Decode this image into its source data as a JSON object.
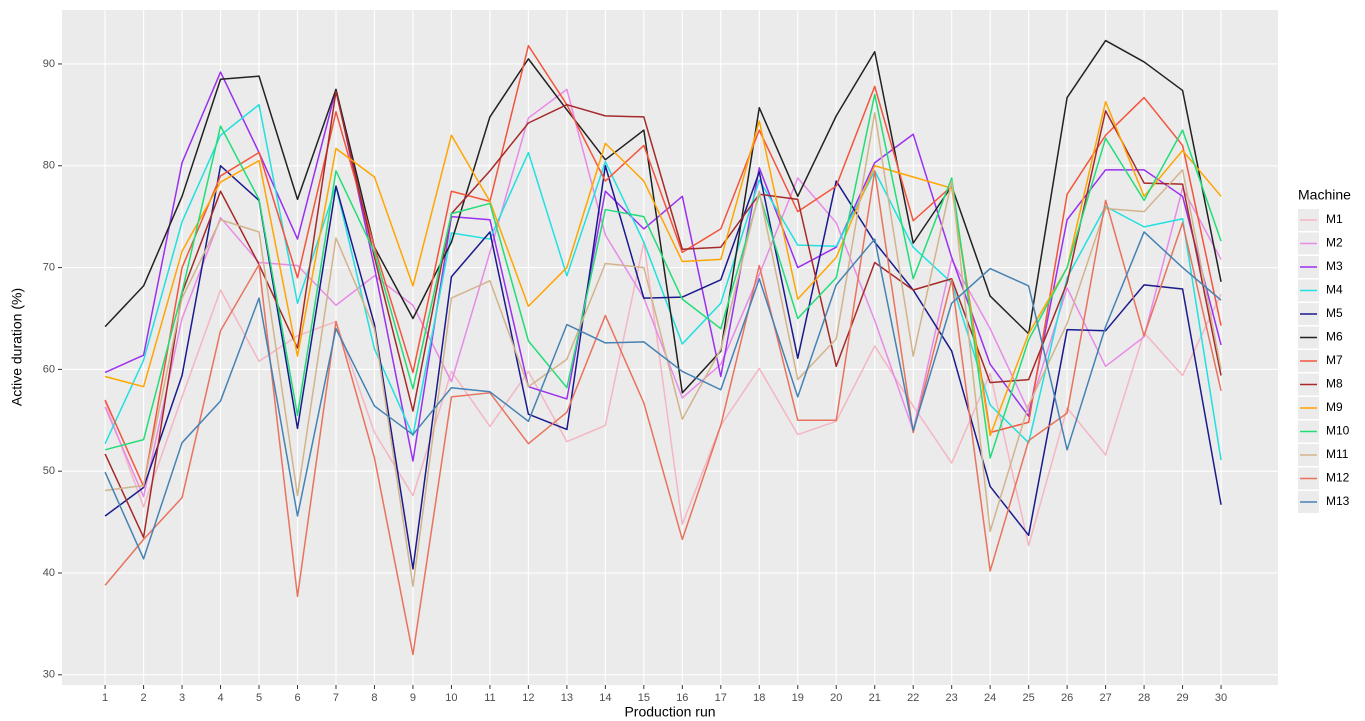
{
  "chart_data": {
    "type": "line",
    "x_label": "Production run",
    "y_label": "Active duration (%)",
    "legend_title": "Machine",
    "x": [
      1,
      2,
      3,
      4,
      5,
      6,
      7,
      8,
      9,
      10,
      11,
      12,
      13,
      14,
      15,
      16,
      17,
      18,
      19,
      20,
      21,
      22,
      23,
      24,
      25,
      26,
      27,
      28,
      29,
      30
    ],
    "xlim": [
      -0.12,
      31.48
    ],
    "xticks": [
      1,
      2,
      3,
      4,
      5,
      6,
      7,
      8,
      9,
      10,
      11,
      12,
      13,
      14,
      15,
      16,
      17,
      18,
      19,
      20,
      21,
      22,
      23,
      24,
      25,
      26,
      27,
      28,
      29,
      30
    ],
    "ylim": [
      29,
      95.3
    ],
    "yticks": [
      30,
      40,
      50,
      60,
      70,
      80,
      90
    ],
    "grid": true,
    "legend": "right",
    "series": [
      {
        "name": "M1",
        "color": "#f4b6c2",
        "values": [
          56.8,
          46.5,
          57.3,
          67.8,
          60.8,
          63.3,
          64.7,
          53.8,
          47.6,
          59.8,
          54.4,
          59.8,
          52.9,
          54.5,
          72.5,
          44.8,
          54.5,
          60.1,
          53.6,
          54.9,
          62.3,
          56.4,
          50.8,
          59.6,
          42.7,
          56.2,
          51.6,
          63.6,
          59.4,
          67.4
        ]
      },
      {
        "name": "M2",
        "color": "#e88be8",
        "values": [
          56.3,
          47.5,
          65,
          74.9,
          70.5,
          70.2,
          66.3,
          69.2,
          66.3,
          58.8,
          71.5,
          84.7,
          87.5,
          73.2,
          67,
          57.2,
          60.5,
          69.3,
          78.8,
          74.4,
          64.8,
          54,
          70.8,
          64,
          55.9,
          68,
          60.3,
          63.2,
          77.8,
          70.8
        ]
      },
      {
        "name": "M3",
        "color": "#9b30f0",
        "values": [
          59.7,
          61.4,
          80.3,
          89.2,
          81.3,
          72.8,
          87.5,
          70,
          51,
          75,
          74.7,
          58.3,
          57.1,
          77.5,
          73.8,
          77,
          59.3,
          79.8,
          70,
          72,
          80.3,
          83.1,
          71,
          60.5,
          55.4,
          74.7,
          79.6,
          79.6,
          77,
          62.4
        ]
      },
      {
        "name": "M4",
        "color": "#22e0e0",
        "values": [
          52.7,
          60.9,
          74.5,
          83,
          86,
          66.5,
          78,
          62,
          53.5,
          73.4,
          72.8,
          81.3,
          69.2,
          80.4,
          72.5,
          62.5,
          66.5,
          78.6,
          72.2,
          72.1,
          79.5,
          72,
          68.5,
          56.5,
          52.8,
          69,
          76,
          74,
          74.8,
          51.1
        ]
      },
      {
        "name": "M5",
        "color": "#1a1a8c",
        "values": [
          45.6,
          48.4,
          59.4,
          80,
          76.6,
          54.2,
          78,
          64.4,
          40.4,
          69.1,
          73.5,
          55.6,
          54.1,
          80,
          67,
          67.1,
          68.8,
          79.4,
          61.1,
          78.5,
          72.5,
          67.8,
          61.8,
          48.5,
          43.7,
          63.9,
          63.8,
          68.3,
          67.9,
          46.7
        ]
      },
      {
        "name": "M6",
        "color": "#222222",
        "values": [
          64.2,
          68.2,
          77,
          88.5,
          88.8,
          76.7,
          87.5,
          72,
          65,
          72.5,
          84.8,
          90.5,
          85.5,
          80.6,
          83.5,
          57.7,
          61.8,
          85.7,
          77,
          84.9,
          91.2,
          72.4,
          78,
          67.2,
          63.5,
          86.7,
          92.3,
          90.2,
          87.4,
          68.6
        ]
      },
      {
        "name": "M7",
        "color": "#f4543c",
        "values": [
          57,
          48.5,
          70,
          79,
          81.3,
          69,
          85.3,
          72,
          59.7,
          77.5,
          76.5,
          91.8,
          86,
          78.5,
          82,
          71.5,
          73.8,
          83.5,
          75.5,
          78,
          87.8,
          74.6,
          78,
          53.8,
          54.8,
          77.2,
          83,
          86.7,
          82,
          64.3
        ]
      },
      {
        "name": "M8",
        "color": "#a52a2a",
        "values": [
          51.7,
          43.5,
          67.5,
          77.5,
          70.3,
          62.1,
          87.3,
          71,
          55.9,
          75.3,
          79.5,
          84.2,
          86,
          84.9,
          84.8,
          71.8,
          72,
          77.2,
          76.7,
          60.3,
          70.5,
          67.8,
          68.9,
          58.7,
          59,
          68.5,
          85.4,
          78.3,
          78.2,
          59.4
        ]
      },
      {
        "name": "M9",
        "color": "#ffa500",
        "values": [
          59.3,
          58.3,
          71.6,
          78.4,
          80.5,
          61.3,
          81.7,
          78.9,
          68.2,
          83,
          76.5,
          66.2,
          70,
          82.2,
          78.5,
          70.6,
          70.8,
          84.4,
          66.9,
          71,
          80,
          78.9,
          77.8,
          53.5,
          63.5,
          70,
          86.3,
          77,
          81.5,
          77
        ]
      },
      {
        "name": "M10",
        "color": "#22dd77",
        "values": [
          52.1,
          53.1,
          67.6,
          83.9,
          76.7,
          55.5,
          79.5,
          71.5,
          58.1,
          75.3,
          76.3,
          62.8,
          58.2,
          75.7,
          75,
          66.9,
          64,
          77.2,
          65,
          69,
          87,
          68.9,
          78.8,
          51.3,
          62.9,
          70,
          82.7,
          76.6,
          83.5,
          72.6
        ]
      },
      {
        "name": "M11",
        "color": "#d2b48c",
        "values": [
          48.1,
          48.6,
          67,
          74.7,
          73.5,
          47.6,
          72.9,
          64,
          38.7,
          67,
          68.7,
          58.3,
          61,
          70.4,
          70,
          55.1,
          62,
          77.5,
          59,
          63,
          85.2,
          61.3,
          78.5,
          44.1,
          56.5,
          64.5,
          75.8,
          75.5,
          79.6,
          60
        ]
      },
      {
        "name": "M12",
        "color": "#e9735d",
        "values": [
          38.8,
          43.3,
          47.4,
          63.8,
          70.3,
          37.7,
          64.7,
          51.3,
          32,
          57.3,
          57.7,
          52.7,
          55.8,
          65.3,
          56.7,
          43.3,
          54.5,
          70.2,
          55,
          55,
          79.5,
          53.8,
          68.8,
          40.2,
          53,
          55.7,
          76.6,
          63.3,
          74.4,
          57.9
        ]
      },
      {
        "name": "M13",
        "color": "#4682b4",
        "values": [
          49.9,
          41.4,
          52.8,
          56.9,
          67,
          45.6,
          64,
          56.4,
          53.6,
          58.2,
          57.8,
          54.9,
          64.4,
          62.6,
          62.7,
          59.8,
          58,
          68.9,
          57.3,
          68.3,
          72.8,
          54,
          66.5,
          69.9,
          68.2,
          52.1,
          64.2,
          73.5,
          70,
          66.8
        ]
      }
    ]
  }
}
